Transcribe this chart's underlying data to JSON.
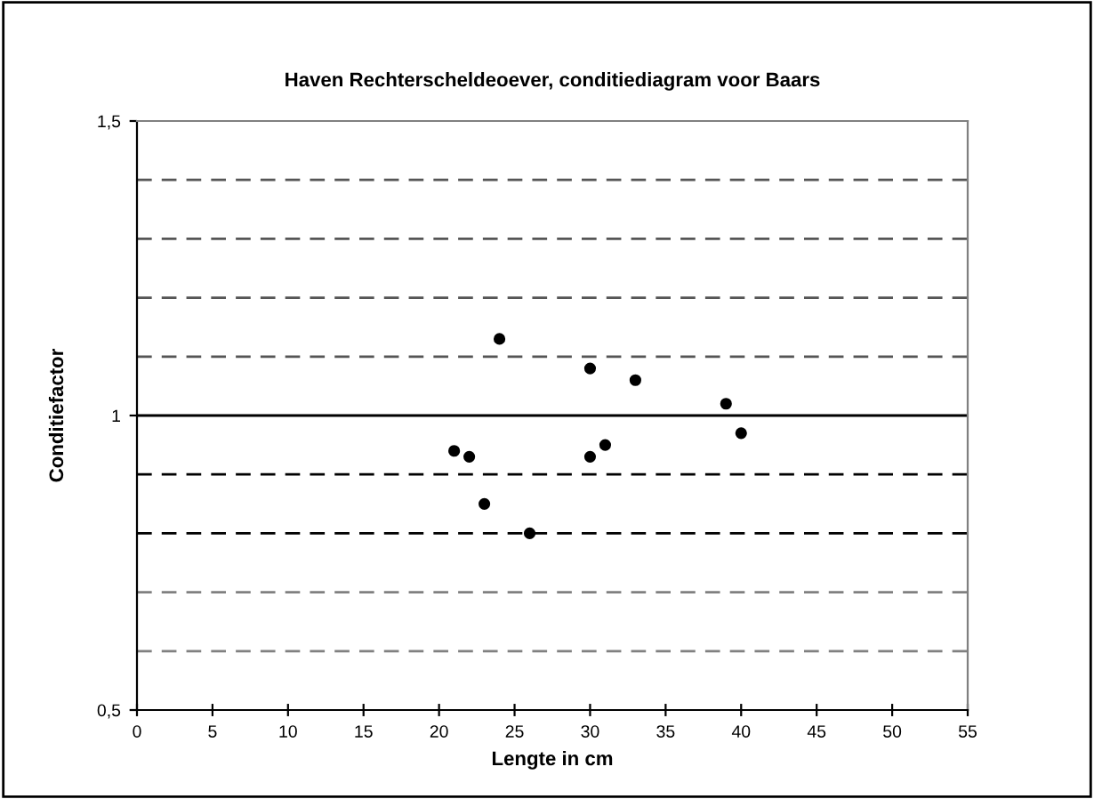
{
  "chart_data": {
    "type": "scatter",
    "title": "Haven Rechterscheldeoever, conditiediagram voor Baars",
    "xlabel": "Lengte in cm",
    "ylabel": "Conditiefactor",
    "series": [
      {
        "color": "#000000",
        "x": [
          21,
          22,
          23,
          24,
          26,
          30,
          30,
          31,
          33,
          39,
          40
        ],
        "values": [
          0.94,
          0.93,
          0.85,
          1.13,
          0.8,
          1.08,
          0.93,
          0.95,
          1.06,
          1.02,
          0.97
        ]
      }
    ],
    "marker": "circle",
    "xlim": [
      0,
      55
    ],
    "xticks": [
      0,
      5,
      10,
      15,
      20,
      25,
      30,
      35,
      40,
      45,
      50,
      55
    ],
    "ylim": [
      0.5,
      1.5
    ],
    "yticks": [
      {
        "value": 0.5,
        "label": "0,5"
      },
      {
        "value": 1,
        "label": "1"
      },
      {
        "value": 1.5,
        "label": "1,5"
      }
    ],
    "ref_lines": [
      {
        "axis": "y",
        "value": 0.6,
        "color": "#808080",
        "line_style": "dashed"
      },
      {
        "axis": "y",
        "value": 0.7,
        "color": "#808080",
        "line_style": "dashed"
      },
      {
        "axis": "y",
        "value": 0.8,
        "color": "#000000",
        "line_style": "dashed"
      },
      {
        "axis": "y",
        "value": 0.9,
        "color": "#000000",
        "line_style": "dashed"
      },
      {
        "axis": "y",
        "value": 1,
        "color": "#000000",
        "line_style": "solid"
      },
      {
        "axis": "y",
        "value": 1.1,
        "color": "#555555",
        "line_style": "dashed"
      },
      {
        "axis": "y",
        "value": 1.2,
        "color": "#555555",
        "line_style": "dashed"
      },
      {
        "axis": "y",
        "value": 1.3,
        "color": "#555555",
        "line_style": "dashed"
      },
      {
        "axis": "y",
        "value": 1.4,
        "color": "#555555",
        "line_style": "dashed"
      }
    ],
    "grid": false,
    "legend": false
  }
}
